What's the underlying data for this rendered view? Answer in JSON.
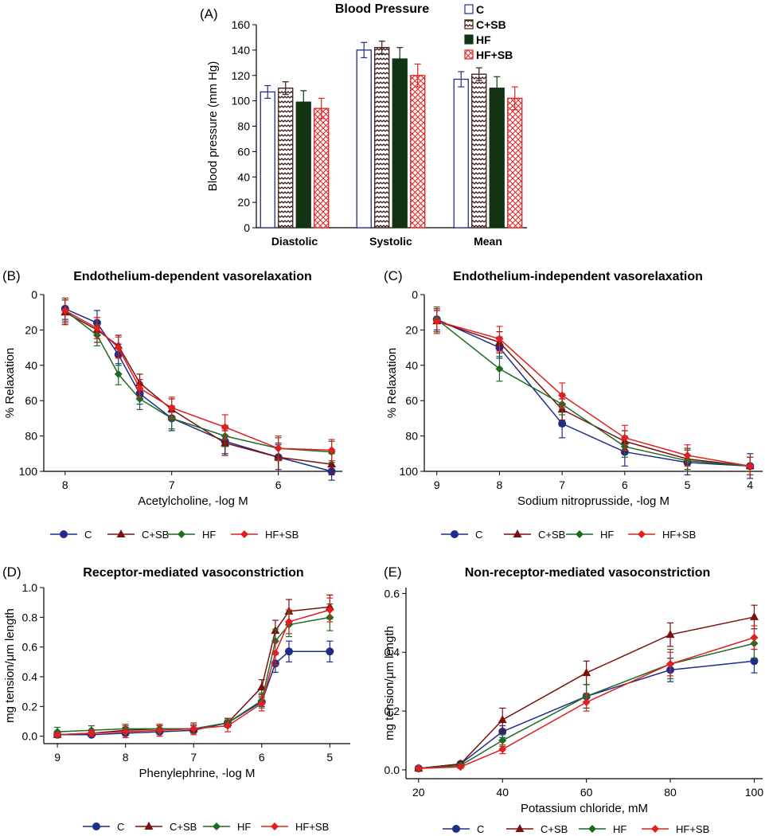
{
  "colors": {
    "C": "#1f2d8a",
    "C+SB": "#7a1010",
    "HF": "#1d6b25",
    "HF+SB": "#e0201e",
    "HFbar": "#123412"
  },
  "chart_data": [
    {
      "id": "A",
      "panel_label": "(A)",
      "type": "bar",
      "title": "Blood Pressure",
      "xlabel": "",
      "ylabel": "Blood pressure (mm Hg)",
      "ylim": [
        0,
        160
      ],
      "yticks": [
        "0",
        "20",
        "40",
        "60",
        "80",
        "100",
        "120",
        "140",
        "160"
      ],
      "categories": [
        "Diastolic",
        "Systolic",
        "Mean"
      ],
      "legend": [
        "C",
        "C+SB",
        "HF",
        "HF+SB"
      ],
      "series": [
        {
          "name": "C",
          "values": [
            107,
            140,
            117
          ],
          "errors": [
            5,
            6,
            6
          ]
        },
        {
          "name": "C+SB",
          "values": [
            110,
            142,
            121
          ],
          "errors": [
            5,
            5,
            5
          ]
        },
        {
          "name": "HF",
          "values": [
            99,
            133,
            110
          ],
          "errors": [
            9,
            9,
            9
          ]
        },
        {
          "name": "HF+SB",
          "values": [
            94,
            120,
            102
          ],
          "errors": [
            8,
            9,
            9
          ]
        }
      ]
    },
    {
      "id": "B",
      "panel_label": "(B)",
      "type": "line",
      "title": "Endothelium-dependent vasorelaxation",
      "xlabel": "Acetylcholine, -log M",
      "ylabel": "% Relaxation",
      "xlim": [
        8.2,
        5.4
      ],
      "ylim": [
        0,
        100
      ],
      "yinverted": true,
      "xticks": [
        "8",
        "7",
        "6"
      ],
      "yticks": [
        "0",
        "20",
        "40",
        "60",
        "80",
        "100"
      ],
      "x": [
        8,
        7.7,
        7.5,
        7.3,
        7,
        6.5,
        6,
        5.5
      ],
      "series": [
        {
          "name": "C",
          "values": [
            8,
            16,
            34,
            56,
            70,
            83,
            92,
            100
          ],
          "errors": [
            6,
            7,
            6,
            6,
            7,
            7,
            7,
            5
          ]
        },
        {
          "name": "C+SB",
          "values": [
            10,
            20,
            29,
            50,
            65,
            84,
            92,
            96
          ],
          "errors": [
            7,
            7,
            6,
            5,
            6,
            7,
            8,
            6
          ]
        },
        {
          "name": "HF",
          "values": [
            9,
            23,
            45,
            59,
            70,
            80,
            87,
            89
          ],
          "errors": [
            6,
            6,
            6,
            6,
            6,
            6,
            6,
            6
          ]
        },
        {
          "name": "HF+SB",
          "values": [
            9,
            19,
            30,
            53,
            64,
            75,
            87,
            88
          ],
          "errors": [
            7,
            6,
            6,
            5,
            6,
            7,
            7,
            6
          ]
        }
      ]
    },
    {
      "id": "C",
      "panel_label": "(C)",
      "type": "line",
      "title": "Endothelium-independent vasorelaxation",
      "xlabel": "Sodium nitroprusside, -log M",
      "ylabel": "% Relaxation",
      "xlim": [
        9.2,
        3.8
      ],
      "ylim": [
        0,
        100
      ],
      "yinverted": true,
      "xticks": [
        "9",
        "8",
        "7",
        "6",
        "5",
        "4"
      ],
      "yticks": [
        "0",
        "20",
        "40",
        "60",
        "80",
        "100"
      ],
      "x": [
        9,
        8,
        7,
        6,
        5,
        4
      ],
      "series": [
        {
          "name": "C",
          "values": [
            14,
            30,
            73,
            89,
            95,
            97
          ],
          "errors": [
            6,
            6,
            8,
            8,
            7,
            7
          ]
        },
        {
          "name": "C+SB",
          "values": [
            15,
            27,
            65,
            83,
            93,
            97
          ],
          "errors": [
            6,
            6,
            6,
            6,
            6,
            5
          ]
        },
        {
          "name": "HF",
          "values": [
            14,
            42,
            62,
            86,
            94,
            97
          ],
          "errors": [
            7,
            7,
            6,
            6,
            6,
            5
          ]
        },
        {
          "name": "HF+SB",
          "values": [
            15,
            25,
            57,
            81,
            91,
            97
          ],
          "errors": [
            7,
            7,
            7,
            7,
            6,
            5
          ]
        }
      ]
    },
    {
      "id": "D",
      "panel_label": "(D)",
      "type": "line",
      "title": "Receptor-mediated vasoconstriction",
      "xlabel": "Phenylephrine, -log M",
      "ylabel": "mg tension/μm length",
      "xlim": [
        9.2,
        4.7
      ],
      "ylim": [
        -0.05,
        1.0
      ],
      "xticks": [
        "9",
        "8",
        "7",
        "6",
        "5"
      ],
      "yticks": [
        "0.0",
        "0.2",
        "0.4",
        "0.6",
        "0.8",
        "1.0"
      ],
      "x": [
        9,
        8.5,
        8,
        7.5,
        7,
        6.5,
        6,
        5.8,
        5.6,
        5
      ],
      "series": [
        {
          "name": "C",
          "values": [
            0.01,
            0.01,
            0.02,
            0.03,
            0.04,
            0.09,
            0.23,
            0.49,
            0.57,
            0.57
          ],
          "errors": [
            0.01,
            0.01,
            0.01,
            0.01,
            0.01,
            0.02,
            0.03,
            0.06,
            0.07,
            0.07
          ]
        },
        {
          "name": "C+SB",
          "values": [
            0.01,
            0.02,
            0.04,
            0.05,
            0.05,
            0.09,
            0.33,
            0.71,
            0.84,
            0.87
          ],
          "errors": [
            0.01,
            0.01,
            0.02,
            0.02,
            0.02,
            0.03,
            0.05,
            0.07,
            0.08,
            0.08
          ]
        },
        {
          "name": "HF",
          "values": [
            0.03,
            0.04,
            0.05,
            0.05,
            0.05,
            0.09,
            0.24,
            0.64,
            0.75,
            0.8
          ],
          "errors": [
            0.03,
            0.03,
            0.03,
            0.03,
            0.03,
            0.03,
            0.05,
            0.08,
            0.08,
            0.09
          ]
        },
        {
          "name": "HF+SB",
          "values": [
            0.01,
            0.02,
            0.03,
            0.04,
            0.05,
            0.07,
            0.22,
            0.56,
            0.77,
            0.85
          ],
          "errors": [
            0.01,
            0.02,
            0.04,
            0.04,
            0.04,
            0.04,
            0.05,
            0.08,
            0.08,
            0.08
          ]
        }
      ]
    },
    {
      "id": "E",
      "panel_label": "(E)",
      "type": "line",
      "title": "Non-receptor-mediated vasoconstriction",
      "xlabel": "Potassium chloride, mM",
      "ylabel": "mg tension/μm length",
      "xlim": [
        17,
        102
      ],
      "ylim": [
        -0.03,
        0.62
      ],
      "xticks": [
        "20",
        "40",
        "60",
        "80",
        "100"
      ],
      "yticks": [
        "0.0",
        "0.2",
        "0.4",
        "0.6"
      ],
      "x": [
        20,
        30,
        40,
        60,
        80,
        100
      ],
      "series": [
        {
          "name": "C",
          "values": [
            0.005,
            0.02,
            0.13,
            0.25,
            0.34,
            0.37
          ],
          "errors": [
            0.003,
            0.005,
            0.02,
            0.04,
            0.04,
            0.04
          ]
        },
        {
          "name": "C+SB",
          "values": [
            0.005,
            0.02,
            0.17,
            0.33,
            0.46,
            0.52
          ],
          "errors": [
            0.003,
            0.005,
            0.04,
            0.04,
            0.04,
            0.04
          ]
        },
        {
          "name": "HF",
          "values": [
            0.005,
            0.015,
            0.1,
            0.25,
            0.36,
            0.43
          ],
          "errors": [
            0.003,
            0.005,
            0.02,
            0.04,
            0.05,
            0.05
          ]
        },
        {
          "name": "HF+SB",
          "values": [
            0.005,
            0.01,
            0.07,
            0.23,
            0.36,
            0.45
          ],
          "errors": [
            0.003,
            0.005,
            0.015,
            0.03,
            0.04,
            0.04
          ]
        }
      ]
    }
  ]
}
